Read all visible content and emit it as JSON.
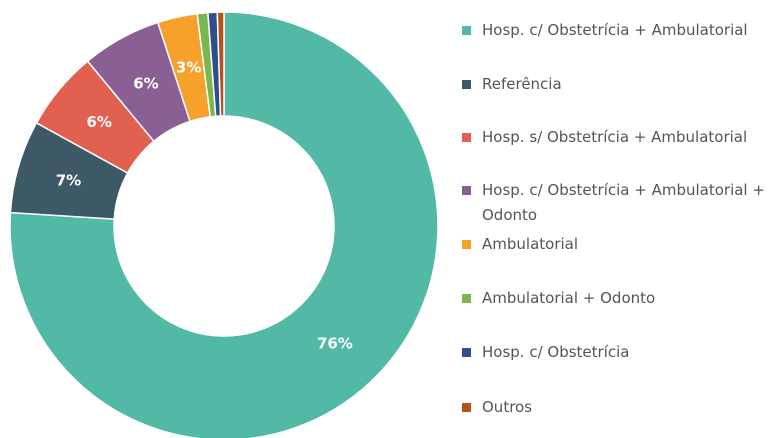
{
  "chart_data": {
    "type": "donut",
    "categories": [
      "Hosp. c/ Obstetrícia + Ambulatorial",
      "Referência",
      "Hosp. s/ Obstetrícia + Ambulatorial",
      "Hosp. c/ Obstetrícia + Ambulatorial + Odonto",
      "Ambulatorial",
      "Ambulatorial + Odonto",
      "Hosp. c/ Obstetrícia",
      "Outros"
    ],
    "values": [
      76,
      7,
      6,
      6,
      3,
      0.8,
      0.7,
      0.5
    ],
    "value_labels": [
      "76%",
      "7%",
      "6%",
      "6%",
      "3%",
      null,
      null,
      null
    ],
    "colors": [
      "#52b9a6",
      "#3d5866",
      "#e2604f",
      "#8a5f94",
      "#f5a12b",
      "#7ab84f",
      "#2d4f8d",
      "#b5531c"
    ],
    "legend": "right"
  }
}
